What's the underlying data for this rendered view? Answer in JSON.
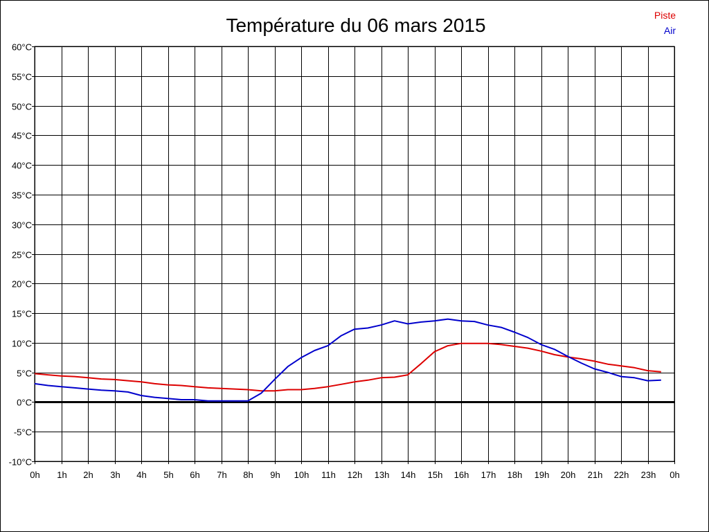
{
  "chart_data": {
    "type": "line",
    "title": "Température du 06 mars 2015",
    "xlabel": "",
    "ylabel": "",
    "x_unit": "h",
    "xlim": [
      0,
      24
    ],
    "ylim": [
      -10,
      60
    ],
    "grid": true,
    "legend_position": "top-right",
    "x_tick_labels": [
      "0h",
      "1h",
      "2h",
      "3h",
      "4h",
      "5h",
      "6h",
      "7h",
      "8h",
      "9h",
      "10h",
      "11h",
      "12h",
      "13h",
      "14h",
      "15h",
      "16h",
      "17h",
      "18h",
      "19h",
      "20h",
      "21h",
      "22h",
      "23h",
      "0h"
    ],
    "y_tick_labels": [
      "-10°C",
      "-5°C",
      "0°C",
      "5°C",
      "10°C",
      "15°C",
      "20°C",
      "25°C",
      "30°C",
      "35°C",
      "40°C",
      "45°C",
      "50°C",
      "55°C",
      "60°C"
    ],
    "x": [
      0,
      0.5,
      1,
      1.5,
      2,
      2.5,
      3,
      3.5,
      4,
      4.5,
      5,
      5.5,
      6,
      6.5,
      7,
      7.5,
      8,
      8.5,
      9,
      9.5,
      10,
      10.5,
      11,
      11.5,
      12,
      12.5,
      13,
      13.5,
      14,
      14.5,
      15,
      15.5,
      16,
      16.5,
      17,
      17.5,
      18,
      18.5,
      19,
      19.5,
      20,
      20.5,
      21,
      21.5,
      22,
      22.5,
      23,
      23.5
    ],
    "series": [
      {
        "name": "Piste",
        "color": "#dd0000",
        "values": [
          4.8,
          4.6,
          4.4,
          4.3,
          4.1,
          3.9,
          3.8,
          3.6,
          3.4,
          3.1,
          2.9,
          2.8,
          2.6,
          2.4,
          2.3,
          2.2,
          2.1,
          1.9,
          1.9,
          2.1,
          2.1,
          2.3,
          2.6,
          3.0,
          3.4,
          3.7,
          4.1,
          4.2,
          4.6,
          6.5,
          8.5,
          9.5,
          9.9,
          9.9,
          9.9,
          9.7,
          9.4,
          9.1,
          8.6,
          8.0,
          7.6,
          7.3,
          6.9,
          6.4,
          6.1,
          5.8,
          5.3,
          5.1
        ]
      },
      {
        "name": "Air",
        "color": "#0000cc",
        "values": [
          3.1,
          2.8,
          2.6,
          2.4,
          2.2,
          2.0,
          1.9,
          1.7,
          1.1,
          0.8,
          0.6,
          0.4,
          0.4,
          0.2,
          0.2,
          0.2,
          0.2,
          1.5,
          3.8,
          6.0,
          7.5,
          8.7,
          9.5,
          11.2,
          12.3,
          12.5,
          13.0,
          13.7,
          13.2,
          13.5,
          13.7,
          14.0,
          13.7,
          13.6,
          13.0,
          12.6,
          11.8,
          10.9,
          9.7,
          8.9,
          7.7,
          6.6,
          5.6,
          5.0,
          4.3,
          4.1,
          3.6,
          3.7
        ]
      }
    ]
  }
}
